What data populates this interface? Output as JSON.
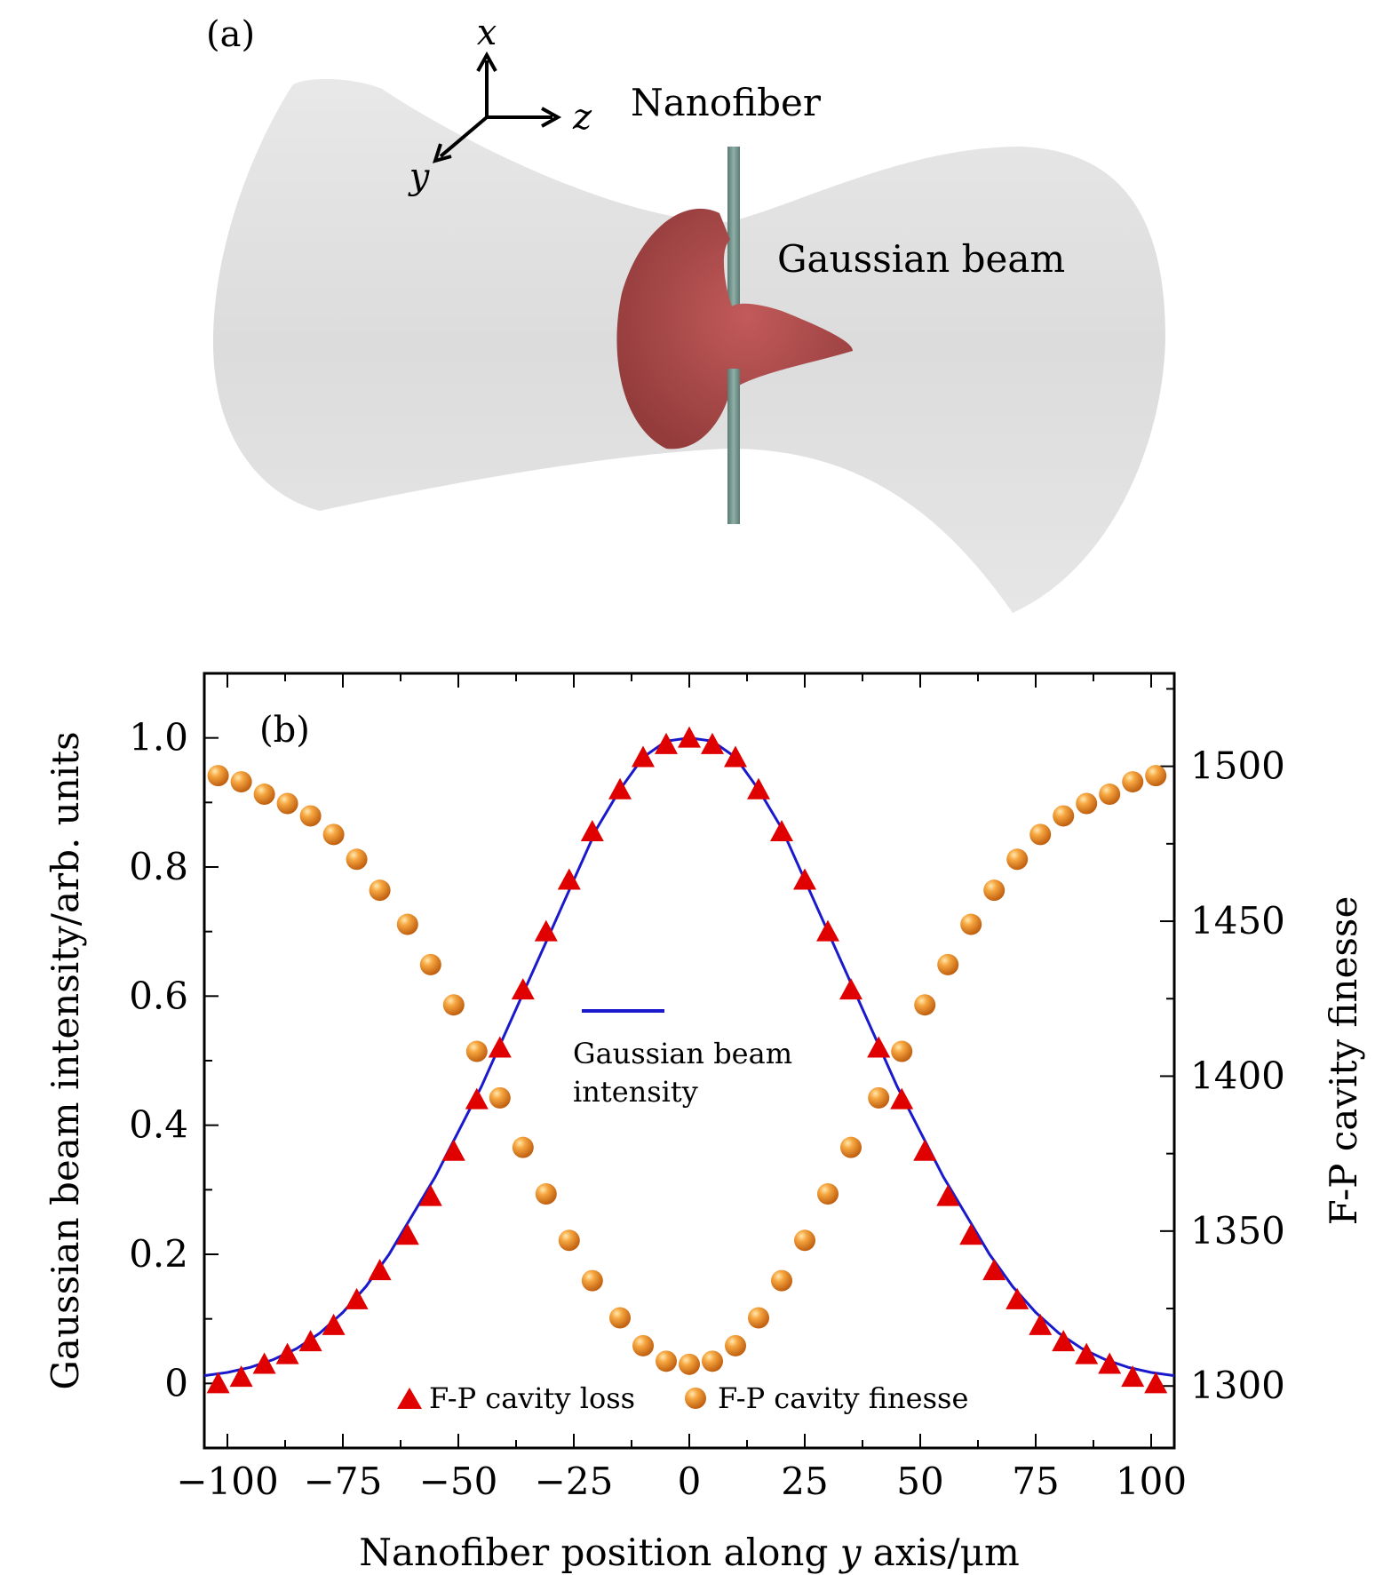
{
  "panel_a": {
    "label": "(a)",
    "axes": {
      "x": "x",
      "y": "y",
      "z": "z"
    },
    "nanofiber_label": "Nanofiber",
    "beam_label": "Gaussian beam",
    "colors": {
      "beam": "#e2e2e2",
      "lobe": "#b04a4a",
      "fiber": "#6f8f87"
    }
  },
  "panel_b": {
    "label": "(b)",
    "legend_line_label_1": "Gaussian beam",
    "legend_line_label_2": "intensity",
    "legend_loss": "F-P cavity loss",
    "legend_finesse": "F-P cavity finesse"
  },
  "chart_data": {
    "type": "scatter",
    "xlabel_pre": "Nanofiber position along ",
    "xlabel_var": "y",
    "xlabel_post": " axis/μm",
    "ylabel_left": "Gaussian beam intensity/arb. units",
    "ylabel_right": "F-P cavity finesse",
    "xlim": [
      -105,
      105
    ],
    "ylim_left": [
      -0.1,
      1.1
    ],
    "ylim_right": [
      1280,
      1530
    ],
    "xticks": [
      -100,
      -75,
      -50,
      -25,
      0,
      25,
      50,
      75,
      100
    ],
    "xtick_labels": [
      "−100",
      "−75",
      "−50",
      "−25",
      "0",
      "25",
      "50",
      "75",
      "100"
    ],
    "yticks_left": [
      0,
      0.2,
      0.4,
      0.6,
      0.8,
      1.0
    ],
    "ytick_labels_left": [
      "0",
      "0.2",
      "0.4",
      "0.6",
      "0.8",
      "1.0"
    ],
    "yticks_right": [
      1300,
      1350,
      1400,
      1450,
      1500
    ],
    "ytick_labels_right": [
      "1300",
      "1350",
      "1400",
      "1450",
      "1500"
    ],
    "colors": {
      "line": "#1a1acc",
      "loss": "#e00000",
      "finesse": "#f39220"
    },
    "series": [
      {
        "name": "Gaussian beam intensity",
        "kind": "line",
        "axis": "left",
        "x": [
          -105,
          -100,
          -95,
          -90,
          -85,
          -80,
          -75,
          -70,
          -65,
          -60,
          -55,
          -50,
          -45,
          -40,
          -35,
          -30,
          -25,
          -20,
          -15,
          -10,
          -5,
          0,
          5,
          10,
          15,
          20,
          25,
          30,
          35,
          40,
          45,
          50,
          55,
          60,
          65,
          70,
          75,
          80,
          85,
          90,
          95,
          100,
          105
        ],
        "y": [
          0.012,
          0.017,
          0.025,
          0.037,
          0.054,
          0.078,
          0.11,
          0.15,
          0.2,
          0.26,
          0.32,
          0.39,
          0.46,
          0.54,
          0.62,
          0.7,
          0.78,
          0.86,
          0.92,
          0.97,
          0.995,
          1.0,
          0.995,
          0.97,
          0.92,
          0.86,
          0.78,
          0.7,
          0.62,
          0.54,
          0.46,
          0.39,
          0.32,
          0.26,
          0.2,
          0.15,
          0.11,
          0.078,
          0.054,
          0.037,
          0.025,
          0.017,
          0.012
        ]
      },
      {
        "name": "F-P cavity loss",
        "kind": "triangle",
        "axis": "left",
        "x": [
          -102,
          -97,
          -92,
          -87,
          -82,
          -77,
          -72,
          -67,
          -61,
          -56,
          -51,
          -46,
          -41,
          -36,
          -31,
          -26,
          -21,
          -15,
          -10,
          -5,
          0,
          5,
          10,
          15,
          20,
          25,
          30,
          35,
          41,
          46,
          51,
          56,
          61,
          66,
          71,
          76,
          81,
          86,
          91,
          96,
          101
        ],
        "y": [
          0.0,
          0.01,
          0.03,
          0.045,
          0.065,
          0.09,
          0.13,
          0.175,
          0.23,
          0.29,
          0.36,
          0.44,
          0.52,
          0.61,
          0.7,
          0.78,
          0.855,
          0.92,
          0.97,
          0.99,
          1.0,
          0.99,
          0.97,
          0.92,
          0.855,
          0.78,
          0.7,
          0.61,
          0.52,
          0.44,
          0.36,
          0.29,
          0.23,
          0.175,
          0.13,
          0.09,
          0.065,
          0.045,
          0.03,
          0.01,
          0.0
        ]
      },
      {
        "name": "F-P cavity finesse",
        "kind": "circle",
        "axis": "right",
        "x": [
          -102,
          -97,
          -92,
          -87,
          -82,
          -77,
          -72,
          -67,
          -61,
          -56,
          -51,
          -46,
          -41,
          -36,
          -31,
          -26,
          -21,
          -15,
          -10,
          -5,
          0,
          5,
          10,
          15,
          20,
          25,
          30,
          35,
          41,
          46,
          51,
          56,
          61,
          66,
          71,
          76,
          81,
          86,
          91,
          96,
          101
        ],
        "y": [
          1497,
          1495,
          1491,
          1488,
          1484,
          1478,
          1470,
          1460,
          1449,
          1436,
          1423,
          1408,
          1393,
          1377,
          1362,
          1347,
          1334,
          1322,
          1313,
          1308,
          1307,
          1308,
          1313,
          1322,
          1334,
          1347,
          1362,
          1377,
          1393,
          1408,
          1423,
          1436,
          1449,
          1460,
          1470,
          1478,
          1484,
          1488,
          1491,
          1495,
          1497
        ]
      }
    ]
  }
}
